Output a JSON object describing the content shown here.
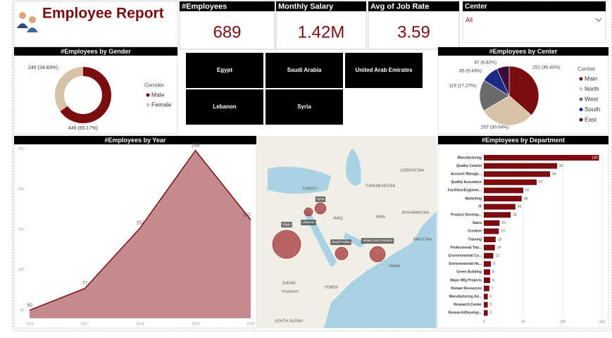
{
  "header": {
    "title": "Employee Report"
  },
  "kpis": [
    {
      "label": "#Employees",
      "value": "689"
    },
    {
      "label": "Monthly Salary",
      "value": "1.42M"
    },
    {
      "label": "Avg of Job Rate",
      "value": "3.59"
    }
  ],
  "slicer": {
    "title": "Center",
    "selected": "All"
  },
  "buttons": [
    "Egypt",
    "Saudi Arabia",
    "United Arab Emirates",
    "Lebanon",
    "Syria"
  ],
  "map": {
    "labels": [
      "TURKEY",
      "TURKMENISTAN",
      "UZBEKISTAN",
      "IRAQ",
      "IRAN",
      "AFGHANISTAN",
      "PAKISTAN",
      "SUDAN",
      "Khartoum",
      "YEMEN",
      "OMAN",
      "SOUTH SUDAN"
    ],
    "bubbles": [
      "Syria",
      "Lebanon",
      "Egypt",
      "Saudi Arabia",
      "United Arab Emirates"
    ]
  },
  "chart_data": [
    {
      "type": "donut",
      "title": "#Employees by Gender",
      "legend_title": "Gender",
      "categories": [
        "Male",
        "Female"
      ],
      "values": [
        449,
        240
      ],
      "value_labels": [
        "449 (65.17%)",
        "240 (34.83%)"
      ],
      "colors": [
        "#7b0c10",
        "#d6c3a8"
      ]
    },
    {
      "type": "pie",
      "title": "#Employees by Center",
      "legend_title": "Center",
      "categories": [
        "Main",
        "North",
        "West",
        "South",
        "East"
      ],
      "values": [
        251,
        207,
        119,
        65,
        47
      ],
      "value_labels": [
        "251 (36.43%)",
        "207 (30.04%)",
        "119 (17.27%)",
        "65 (9.43%)",
        "47 (6.82%)"
      ],
      "colors": [
        "#7b0c10",
        "#d6c3a8",
        "#6b6b6b",
        "#1c2a86",
        "#3b0b3f"
      ]
    },
    {
      "type": "area",
      "title": "#Employees by Year",
      "categories": [
        "2016",
        "2017",
        "2018",
        "2019",
        "2020"
      ],
      "values": [
        50,
        77,
        152,
        248,
        162
      ],
      "ylim": [
        40,
        260
      ],
      "yticks": [
        50,
        100,
        150,
        200,
        250
      ],
      "color": "#7b0c10",
      "fill": "#c48a8c"
    },
    {
      "type": "hbar",
      "title": "#Employees by Department",
      "categories": [
        "Manufacturing",
        "Quality Control",
        "Account Manage...",
        "Quality Assurance",
        "Facilities/Engineer...",
        "Marketing",
        "IT",
        "Product Develop...",
        "Sales",
        "Creative",
        "Training",
        "Professional Trai...",
        "Environmental Co...",
        "Environmental He...",
        "Green Building",
        "Major Mfg Projects",
        "Human Resources",
        "Manufacturing Ad...",
        "Research Center",
        "Research/Develop..."
      ],
      "values": [
        146,
        93,
        84,
        67,
        50,
        48,
        40,
        34,
        20,
        19,
        15,
        14,
        12,
        9,
        8,
        8,
        7,
        5,
        5,
        5
      ],
      "xlim": [
        0,
        150
      ],
      "xticks": [
        0,
        50,
        100,
        150
      ],
      "color": "#7b0c10"
    }
  ]
}
